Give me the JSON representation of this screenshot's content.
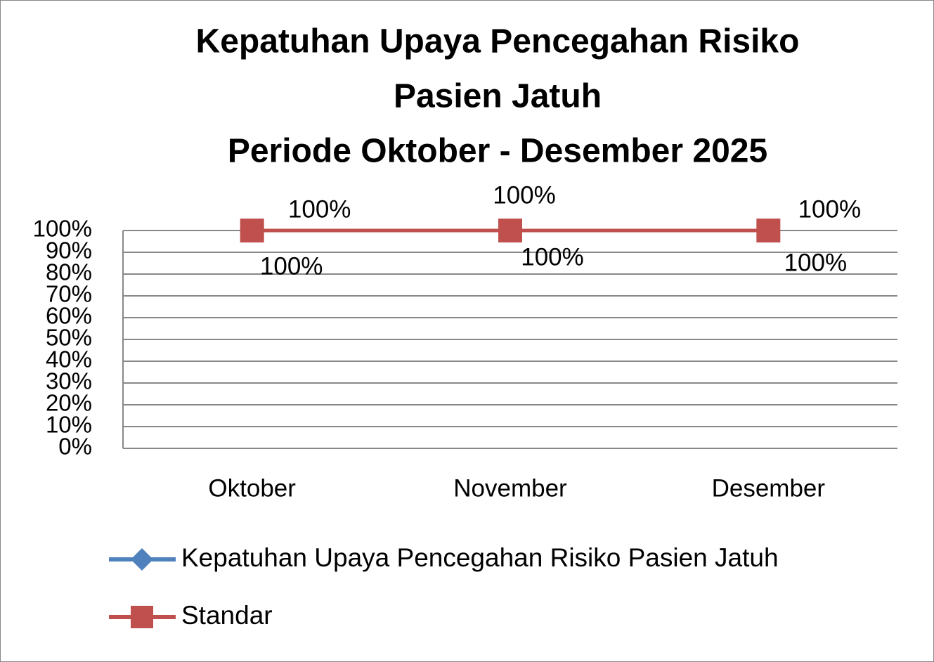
{
  "chart_data": {
    "type": "line",
    "title": [
      "Kepatuhan Upaya Pencegahan Risiko",
      "Pasien Jatuh",
      "Periode Oktober - Desember 2025"
    ],
    "categories": [
      "Oktober",
      "November",
      "Desember"
    ],
    "series": [
      {
        "name": "Kepatuhan Upaya Pencegahan Risiko Pasien Jatuh",
        "color": "#4f81bd",
        "marker": "diamond",
        "values": [
          100,
          100,
          100
        ],
        "value_labels": [
          "100%",
          "100%",
          "100%"
        ]
      },
      {
        "name": "Standar",
        "color": "#c0504d",
        "marker": "square",
        "values": [
          100,
          100,
          100
        ],
        "value_labels": [
          "100%",
          "100%",
          "100%"
        ]
      }
    ],
    "ylim": [
      0,
      100
    ],
    "yticks": [
      {
        "value": 0,
        "label": "0%"
      },
      {
        "value": 10,
        "label": "10%"
      },
      {
        "value": 20,
        "label": "20%"
      },
      {
        "value": 30,
        "label": "30%"
      },
      {
        "value": 40,
        "label": "40%"
      },
      {
        "value": 50,
        "label": "50%"
      },
      {
        "value": 60,
        "label": "60%"
      },
      {
        "value": 70,
        "label": "70%"
      },
      {
        "value": 80,
        "label": "80%"
      },
      {
        "value": 90,
        "label": "90%"
      },
      {
        "value": 100,
        "label": "100%"
      }
    ],
    "grid": true,
    "legend": "bottom"
  }
}
